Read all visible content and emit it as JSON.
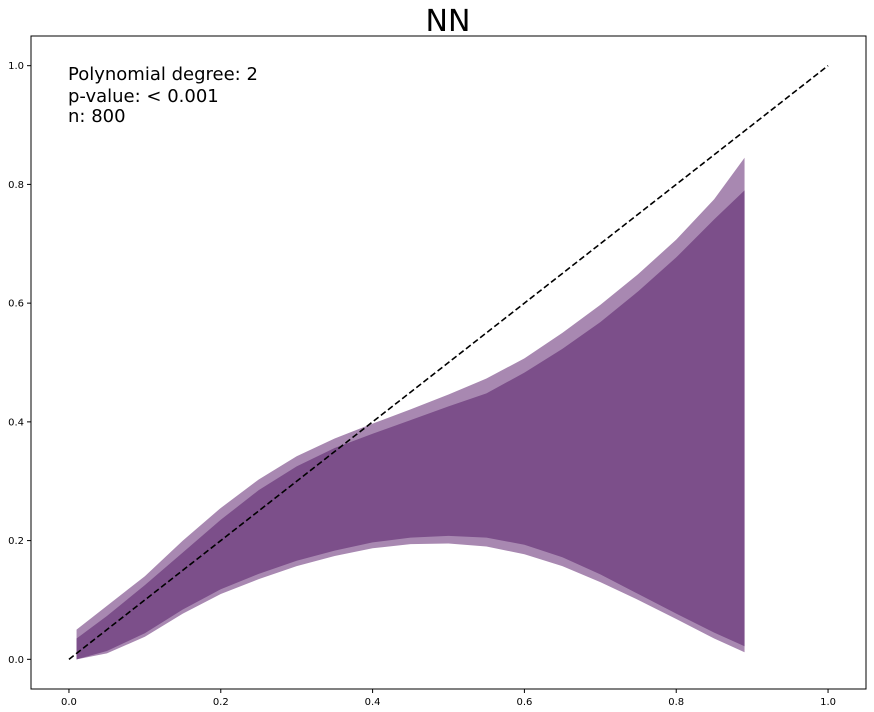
{
  "chart_data": {
    "type": "area",
    "title": "NN",
    "xlabel": "",
    "ylabel": "",
    "xlim": [
      -0.05,
      1.05
    ],
    "ylim": [
      -0.05,
      1.05
    ],
    "xticks": [
      0.0,
      0.2,
      0.4,
      0.6,
      0.8,
      1.0
    ],
    "xtick_labels": [
      "0.0",
      "0.2",
      "0.4",
      "0.6",
      "0.8",
      "1.0"
    ],
    "yticks": [
      0.0,
      0.2,
      0.4,
      0.6,
      0.8,
      1.0
    ],
    "ytick_labels": [
      "0.0",
      "0.2",
      "0.4",
      "0.6",
      "0.8",
      "1.0"
    ],
    "grid": false,
    "annotations": [
      "Polynomial degree: 2",
      "p-value: < 0.001",
      "n: 800"
    ],
    "colors": {
      "band_outer": "#a888b1",
      "band_inner": "#7c4f8a",
      "reference_line": "#000000"
    },
    "reference_line": {
      "style": "dashed",
      "x": [
        0.0,
        1.0
      ],
      "y": [
        0.0,
        1.0
      ]
    },
    "series": [
      {
        "x": [
          0.01,
          0.05,
          0.1,
          0.15,
          0.2,
          0.25,
          0.3,
          0.35,
          0.4,
          0.45,
          0.5,
          0.55,
          0.6,
          0.65,
          0.7,
          0.75,
          0.8,
          0.85,
          0.89
        ],
        "upper": [
          0.05,
          0.09,
          0.14,
          0.2,
          0.255,
          0.303,
          0.342,
          0.372,
          0.397,
          0.421,
          0.446,
          0.473,
          0.507,
          0.55,
          0.597,
          0.649,
          0.707,
          0.775,
          0.845
        ],
        "lower": [
          0.0,
          0.01,
          0.038,
          0.077,
          0.11,
          0.135,
          0.157,
          0.174,
          0.187,
          0.194,
          0.195,
          0.19,
          0.177,
          0.157,
          0.13,
          0.1,
          0.068,
          0.035,
          0.012
        ]
      },
      {
        "x": [
          0.01,
          0.05,
          0.1,
          0.15,
          0.2,
          0.25,
          0.3,
          0.35,
          0.4,
          0.45,
          0.5,
          0.55,
          0.6,
          0.65,
          0.7,
          0.75,
          0.8,
          0.85,
          0.89
        ],
        "upper": [
          0.035,
          0.073,
          0.125,
          0.18,
          0.235,
          0.285,
          0.325,
          0.356,
          0.38,
          0.403,
          0.426,
          0.448,
          0.483,
          0.523,
          0.568,
          0.62,
          0.677,
          0.741,
          0.79
        ],
        "lower": [
          0.0,
          0.014,
          0.044,
          0.084,
          0.118,
          0.144,
          0.166,
          0.183,
          0.197,
          0.205,
          0.208,
          0.205,
          0.193,
          0.172,
          0.143,
          0.11,
          0.077,
          0.045,
          0.022
        ]
      }
    ]
  }
}
